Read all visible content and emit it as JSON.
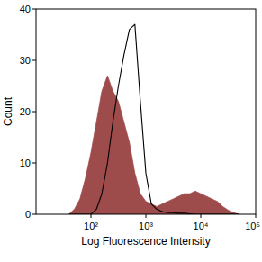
{
  "chart_data": {
    "type": "area",
    "x_label": "Log Fluorescence Intensity",
    "y_label": "Count",
    "log": "x",
    "grid": false,
    "x": [
      39.8,
      50.1,
      63.1,
      79.4,
      100,
      126,
      158,
      200,
      251,
      316,
      398,
      501,
      631,
      794,
      1000,
      1260,
      1580,
      2000,
      2510,
      3160,
      3980,
      5010,
      6310,
      7940,
      10000,
      12600,
      15800,
      20000,
      25100,
      31600,
      39800,
      50100
    ],
    "series": [
      {
        "type": "area",
        "color": "#9e4b4b",
        "values": [
          0,
          1,
          3,
          7,
          12,
          18,
          24,
          27,
          24,
          22,
          18,
          14,
          8,
          4,
          2.5,
          2,
          1.5,
          2,
          2.5,
          3,
          3.5,
          4,
          4,
          4.5,
          4,
          3.5,
          3,
          2.5,
          1.5,
          0.8,
          0.3,
          0
        ]
      },
      {
        "type": "line",
        "color": "#000000",
        "values": [
          0,
          0,
          0,
          0,
          0,
          1,
          4,
          10,
          18,
          25,
          31,
          36,
          37,
          22,
          8,
          2,
          1,
          0.5,
          0.3,
          0.3,
          0.2,
          0.2,
          0.1,
          0,
          0,
          0,
          0,
          0,
          0,
          0,
          0,
          0
        ]
      }
    ],
    "xlim": [
      10,
      100000
    ],
    "xticks": [
      {
        "value": 100,
        "label": "10²"
      },
      {
        "value": 1000,
        "label": "10³"
      },
      {
        "value": 10000,
        "label": "10⁴"
      },
      {
        "value": 100000,
        "label": "10⁵"
      }
    ],
    "ylim": [
      0,
      40
    ],
    "yticks": [
      0,
      10,
      20,
      30,
      40
    ]
  }
}
